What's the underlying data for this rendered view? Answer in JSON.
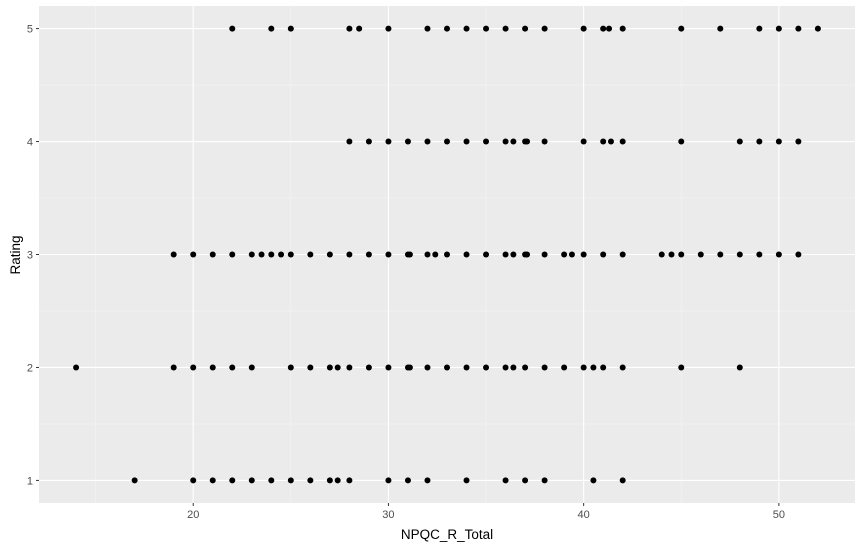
{
  "colors": {
    "panel_background": "#EBEBEB",
    "major_grid": "#FFFFFF",
    "minor_grid": "#F5F5F5",
    "point": "#000000",
    "tick_text": "#4D4D4D",
    "axis_title_text": "#000000"
  },
  "chart_data": {
    "type": "scatter",
    "title": "",
    "xlabel": "NPQC_R_Total",
    "ylabel": "Rating",
    "xlim": [
      12.1,
      53.9
    ],
    "ylim": [
      0.8,
      5.2
    ],
    "x_ticks": [
      20,
      30,
      40,
      50
    ],
    "y_ticks": [
      1,
      2,
      3,
      4,
      5
    ],
    "x_tick_labels": [
      "20",
      "30",
      "40",
      "50"
    ],
    "y_tick_labels": [
      "1",
      "2",
      "3",
      "4",
      "5"
    ],
    "grid": true,
    "legend": "none",
    "points": [
      {
        "x": 22,
        "y": 5
      },
      {
        "x": 24,
        "y": 5
      },
      {
        "x": 25,
        "y": 5
      },
      {
        "x": 28,
        "y": 5
      },
      {
        "x": 28.5,
        "y": 5
      },
      {
        "x": 30,
        "y": 5
      },
      {
        "x": 32,
        "y": 5
      },
      {
        "x": 33,
        "y": 5
      },
      {
        "x": 34,
        "y": 5
      },
      {
        "x": 35,
        "y": 5
      },
      {
        "x": 36,
        "y": 5
      },
      {
        "x": 37,
        "y": 5
      },
      {
        "x": 38,
        "y": 5
      },
      {
        "x": 40,
        "y": 5
      },
      {
        "x": 41,
        "y": 5
      },
      {
        "x": 41.3,
        "y": 5
      },
      {
        "x": 42,
        "y": 5
      },
      {
        "x": 45,
        "y": 5
      },
      {
        "x": 47,
        "y": 5
      },
      {
        "x": 49,
        "y": 5
      },
      {
        "x": 50,
        "y": 5
      },
      {
        "x": 51,
        "y": 5
      },
      {
        "x": 52,
        "y": 5
      },
      {
        "x": 28,
        "y": 4
      },
      {
        "x": 29,
        "y": 4
      },
      {
        "x": 30,
        "y": 4
      },
      {
        "x": 31,
        "y": 4
      },
      {
        "x": 32,
        "y": 4
      },
      {
        "x": 33,
        "y": 4
      },
      {
        "x": 34,
        "y": 4
      },
      {
        "x": 35,
        "y": 4
      },
      {
        "x": 36,
        "y": 4
      },
      {
        "x": 36.4,
        "y": 4
      },
      {
        "x": 37,
        "y": 4
      },
      {
        "x": 37.1,
        "y": 4
      },
      {
        "x": 38,
        "y": 4
      },
      {
        "x": 40,
        "y": 4
      },
      {
        "x": 41,
        "y": 4
      },
      {
        "x": 41.4,
        "y": 4
      },
      {
        "x": 42,
        "y": 4
      },
      {
        "x": 45,
        "y": 4
      },
      {
        "x": 48,
        "y": 4
      },
      {
        "x": 49,
        "y": 4
      },
      {
        "x": 50,
        "y": 4
      },
      {
        "x": 51,
        "y": 4
      },
      {
        "x": 19,
        "y": 3
      },
      {
        "x": 20,
        "y": 3
      },
      {
        "x": 21,
        "y": 3
      },
      {
        "x": 22,
        "y": 3
      },
      {
        "x": 23,
        "y": 3
      },
      {
        "x": 23.5,
        "y": 3
      },
      {
        "x": 24,
        "y": 3
      },
      {
        "x": 24.5,
        "y": 3
      },
      {
        "x": 25,
        "y": 3
      },
      {
        "x": 26,
        "y": 3
      },
      {
        "x": 27,
        "y": 3
      },
      {
        "x": 28,
        "y": 3
      },
      {
        "x": 29,
        "y": 3
      },
      {
        "x": 30,
        "y": 3
      },
      {
        "x": 31,
        "y": 3
      },
      {
        "x": 31.1,
        "y": 3
      },
      {
        "x": 32,
        "y": 3
      },
      {
        "x": 32.4,
        "y": 3
      },
      {
        "x": 33,
        "y": 3
      },
      {
        "x": 34,
        "y": 3
      },
      {
        "x": 35,
        "y": 3
      },
      {
        "x": 36,
        "y": 3
      },
      {
        "x": 36.4,
        "y": 3
      },
      {
        "x": 37,
        "y": 3
      },
      {
        "x": 37.1,
        "y": 3
      },
      {
        "x": 38,
        "y": 3
      },
      {
        "x": 39,
        "y": 3
      },
      {
        "x": 39.4,
        "y": 3
      },
      {
        "x": 40,
        "y": 3
      },
      {
        "x": 41,
        "y": 3
      },
      {
        "x": 42,
        "y": 3
      },
      {
        "x": 44,
        "y": 3
      },
      {
        "x": 44.5,
        "y": 3
      },
      {
        "x": 45,
        "y": 3
      },
      {
        "x": 46,
        "y": 3
      },
      {
        "x": 47,
        "y": 3
      },
      {
        "x": 48,
        "y": 3
      },
      {
        "x": 49,
        "y": 3
      },
      {
        "x": 50,
        "y": 3
      },
      {
        "x": 51,
        "y": 3
      },
      {
        "x": 14,
        "y": 2
      },
      {
        "x": 19,
        "y": 2
      },
      {
        "x": 20,
        "y": 2
      },
      {
        "x": 21,
        "y": 2
      },
      {
        "x": 22,
        "y": 2
      },
      {
        "x": 23,
        "y": 2
      },
      {
        "x": 25,
        "y": 2
      },
      {
        "x": 26,
        "y": 2
      },
      {
        "x": 27,
        "y": 2
      },
      {
        "x": 27.4,
        "y": 2
      },
      {
        "x": 28,
        "y": 2
      },
      {
        "x": 29,
        "y": 2
      },
      {
        "x": 30,
        "y": 2
      },
      {
        "x": 31,
        "y": 2
      },
      {
        "x": 31.1,
        "y": 2
      },
      {
        "x": 32,
        "y": 2
      },
      {
        "x": 33,
        "y": 2
      },
      {
        "x": 34,
        "y": 2
      },
      {
        "x": 35,
        "y": 2
      },
      {
        "x": 36,
        "y": 2
      },
      {
        "x": 36.4,
        "y": 2
      },
      {
        "x": 37,
        "y": 2
      },
      {
        "x": 38,
        "y": 2
      },
      {
        "x": 39,
        "y": 2
      },
      {
        "x": 40,
        "y": 2
      },
      {
        "x": 40.5,
        "y": 2
      },
      {
        "x": 41,
        "y": 2
      },
      {
        "x": 42,
        "y": 2
      },
      {
        "x": 45,
        "y": 2
      },
      {
        "x": 48,
        "y": 2
      },
      {
        "x": 17,
        "y": 1
      },
      {
        "x": 20,
        "y": 1
      },
      {
        "x": 21,
        "y": 1
      },
      {
        "x": 22,
        "y": 1
      },
      {
        "x": 23,
        "y": 1
      },
      {
        "x": 24,
        "y": 1
      },
      {
        "x": 25,
        "y": 1
      },
      {
        "x": 26,
        "y": 1
      },
      {
        "x": 27,
        "y": 1
      },
      {
        "x": 27.4,
        "y": 1
      },
      {
        "x": 28,
        "y": 1
      },
      {
        "x": 30,
        "y": 1
      },
      {
        "x": 31,
        "y": 1
      },
      {
        "x": 32,
        "y": 1
      },
      {
        "x": 34,
        "y": 1
      },
      {
        "x": 36,
        "y": 1
      },
      {
        "x": 37,
        "y": 1
      },
      {
        "x": 38,
        "y": 1
      },
      {
        "x": 40.5,
        "y": 1
      },
      {
        "x": 42,
        "y": 1
      }
    ]
  }
}
